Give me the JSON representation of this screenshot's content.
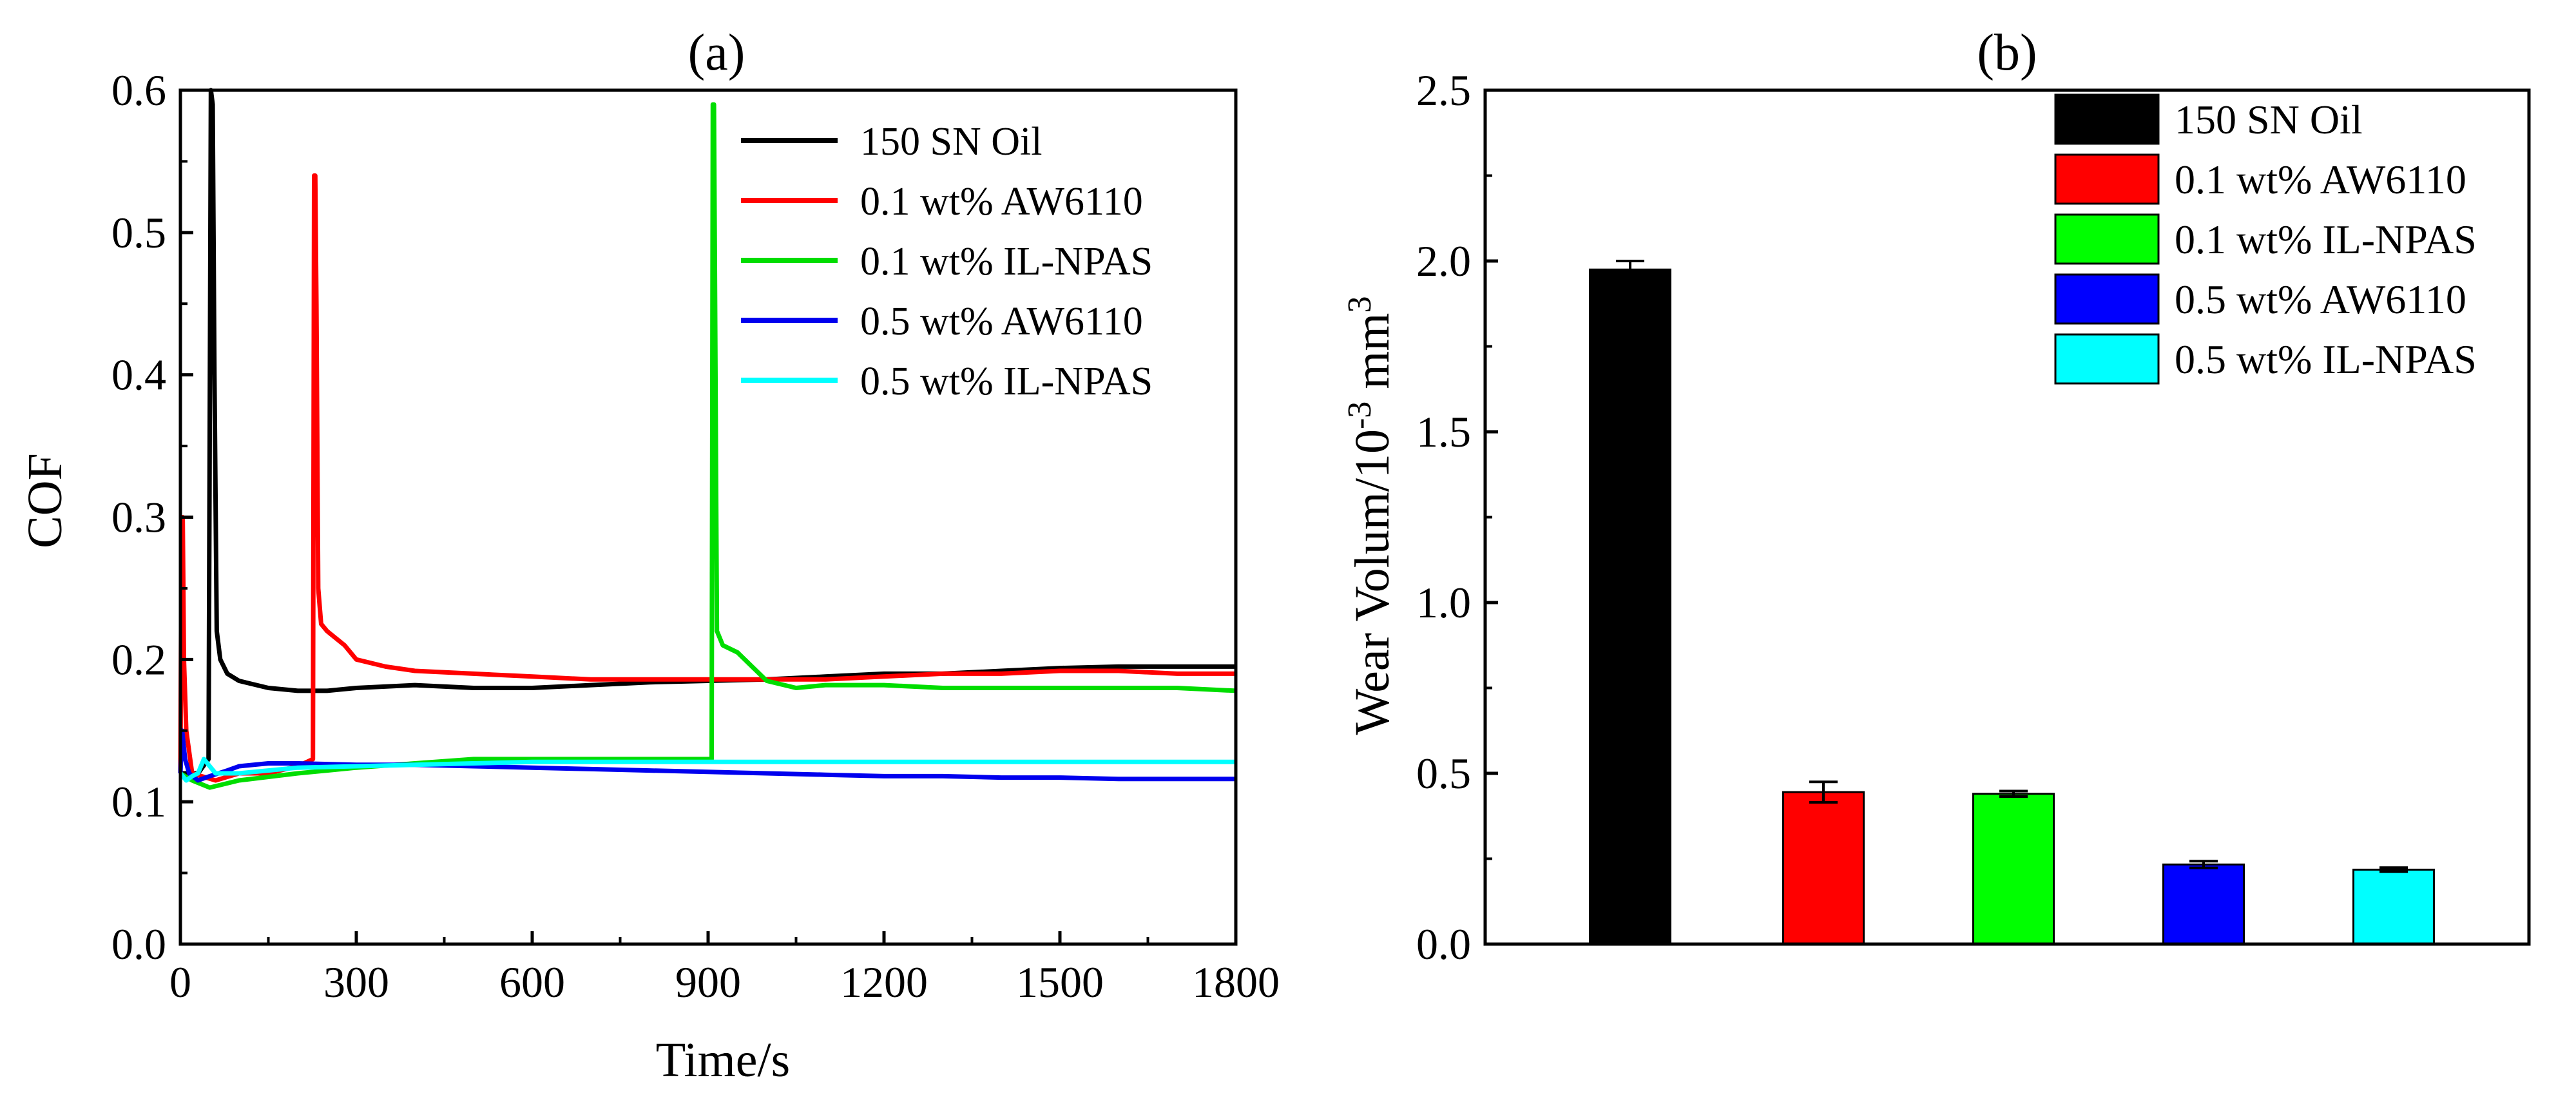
{
  "chart_data": [
    {
      "type": "line",
      "title": "(a)",
      "xlabel": "Time/s",
      "ylabel": "COF",
      "xlim": [
        0,
        1800
      ],
      "ylim": [
        0,
        0.6
      ],
      "xticks": [
        0,
        300,
        600,
        900,
        1200,
        1500,
        1800
      ],
      "yticks": [
        0.0,
        0.1,
        0.2,
        0.3,
        0.4,
        0.5,
        0.6
      ],
      "xtick_labels": [
        "0",
        "300",
        "600",
        "900",
        "1200",
        "1500",
        "1800"
      ],
      "ytick_labels": [
        "0.0",
        "0.1",
        "0.2",
        "0.3",
        "0.4",
        "0.5",
        "0.6"
      ],
      "legend_position": "top-right",
      "series": [
        {
          "name": "150 SN Oil",
          "color": "#000000",
          "x": [
            0,
            10,
            30,
            48,
            52,
            55,
            58,
            62,
            68,
            80,
            100,
            150,
            200,
            250,
            300,
            400,
            500,
            600,
            700,
            800,
            900,
            1000,
            1100,
            1200,
            1300,
            1400,
            1500,
            1600,
            1700,
            1800
          ],
          "y": [
            0.12,
            0.12,
            0.12,
            0.13,
            0.6,
            0.59,
            0.4,
            0.22,
            0.2,
            0.19,
            0.185,
            0.18,
            0.178,
            0.178,
            0.18,
            0.182,
            0.18,
            0.18,
            0.182,
            0.184,
            0.185,
            0.186,
            0.188,
            0.19,
            0.19,
            0.192,
            0.194,
            0.195,
            0.195,
            0.195
          ]
        },
        {
          "name": "0.1 wt% AW6110",
          "color": "#ff0000",
          "x": [
            0,
            2,
            4,
            6,
            10,
            20,
            60,
            100,
            150,
            200,
            226,
            228,
            230,
            232,
            235,
            240,
            250,
            280,
            300,
            350,
            400,
            500,
            600,
            700,
            800,
            900,
            1000,
            1100,
            1200,
            1300,
            1400,
            1500,
            1600,
            1700,
            1800
          ],
          "y": [
            0.12,
            0.3,
            0.3,
            0.2,
            0.15,
            0.12,
            0.115,
            0.12,
            0.12,
            0.125,
            0.13,
            0.54,
            0.54,
            0.45,
            0.25,
            0.225,
            0.22,
            0.21,
            0.2,
            0.195,
            0.192,
            0.19,
            0.188,
            0.186,
            0.186,
            0.186,
            0.186,
            0.186,
            0.188,
            0.19,
            0.19,
            0.192,
            0.192,
            0.19,
            0.19
          ]
        },
        {
          "name": "0.1 wt% IL-NPAS",
          "color": "#00dd00",
          "x": [
            0,
            20,
            50,
            100,
            200,
            300,
            400,
            500,
            600,
            700,
            800,
            900,
            906,
            908,
            910,
            915,
            925,
            950,
            1000,
            1050,
            1100,
            1200,
            1300,
            1400,
            1500,
            1600,
            1700,
            1800
          ],
          "y": [
            0.12,
            0.115,
            0.11,
            0.115,
            0.12,
            0.124,
            0.127,
            0.13,
            0.13,
            0.13,
            0.13,
            0.13,
            0.13,
            0.59,
            0.59,
            0.22,
            0.21,
            0.205,
            0.185,
            0.18,
            0.182,
            0.182,
            0.18,
            0.18,
            0.18,
            0.18,
            0.18,
            0.178
          ]
        },
        {
          "name": "0.5 wt% AW6110",
          "color": "#0000ee",
          "x": [
            0,
            3,
            8,
            15,
            30,
            50,
            80,
            100,
            150,
            200,
            300,
            400,
            500,
            600,
            700,
            800,
            900,
            1000,
            1100,
            1200,
            1300,
            1400,
            1500,
            1600,
            1700,
            1800
          ],
          "y": [
            0.12,
            0.15,
            0.13,
            0.12,
            0.115,
            0.118,
            0.122,
            0.125,
            0.127,
            0.127,
            0.126,
            0.126,
            0.125,
            0.124,
            0.123,
            0.122,
            0.121,
            0.12,
            0.119,
            0.118,
            0.118,
            0.117,
            0.117,
            0.116,
            0.116,
            0.116
          ]
        },
        {
          "name": "0.5 wt% IL-NPAS",
          "color": "#00ffff",
          "x": [
            0,
            10,
            20,
            30,
            40,
            50,
            60,
            80,
            100,
            150,
            200,
            300,
            400,
            500,
            600,
            700,
            800,
            900,
            1000,
            1100,
            1200,
            1300,
            1400,
            1500,
            1600,
            1700,
            1800
          ],
          "y": [
            0.12,
            0.115,
            0.118,
            0.12,
            0.13,
            0.125,
            0.12,
            0.12,
            0.12,
            0.122,
            0.124,
            0.125,
            0.126,
            0.127,
            0.128,
            0.128,
            0.128,
            0.128,
            0.128,
            0.128,
            0.128,
            0.128,
            0.128,
            0.128,
            0.128,
            0.128,
            0.128
          ]
        }
      ]
    },
    {
      "type": "bar",
      "title": "(b)",
      "xlabel": "",
      "ylabel": "Wear Volum/10",
      "ylabel_sup": "-3",
      "ylabel_unit": " mm",
      "ylabel_unit_sup": "3",
      "ylim": [
        0,
        2.5
      ],
      "yticks": [
        0.0,
        0.5,
        1.0,
        1.5,
        2.0,
        2.5
      ],
      "ytick_labels": [
        "0.0",
        "0.5",
        "1.0",
        "1.5",
        "2.0",
        "2.5"
      ],
      "legend_position": "top-right",
      "categories": [
        "150 SN Oil",
        "0.1 wt% AW6110",
        "0.1 wt% IL-NPAS",
        "0.5 wt% AW6110",
        "0.5 wt% IL-NPAS"
      ],
      "values": [
        1.975,
        0.445,
        0.44,
        0.233,
        0.218
      ],
      "errors": [
        0.025,
        0.03,
        0.008,
        0.01,
        0.006
      ],
      "colors": [
        "#000000",
        "#ff0000",
        "#00ff00",
        "#0000ff",
        "#00ffff"
      ]
    }
  ]
}
